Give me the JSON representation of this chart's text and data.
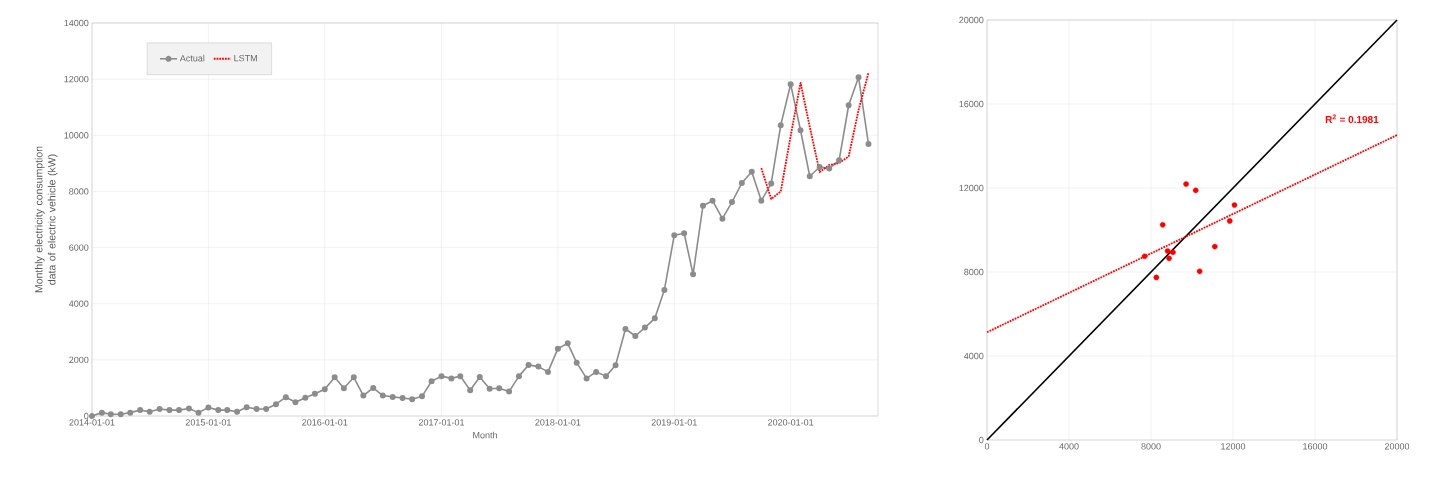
{
  "chart_data": [
    {
      "type": "line",
      "xlabel": "Month",
      "ylabel": "Monthly electricity consumption data of electric vehicle (kW)",
      "x": [
        "2014-01",
        "2014-02",
        "2014-03",
        "2014-04",
        "2014-05",
        "2014-06",
        "2014-07",
        "2014-08",
        "2014-09",
        "2014-10",
        "2014-11",
        "2014-12",
        "2015-01",
        "2015-02",
        "2015-03",
        "2015-04",
        "2015-05",
        "2015-06",
        "2015-07",
        "2015-08",
        "2015-09",
        "2015-10",
        "2015-11",
        "2015-12",
        "2016-01",
        "2016-02",
        "2016-03",
        "2016-04",
        "2016-05",
        "2016-06",
        "2016-07",
        "2016-08",
        "2016-09",
        "2016-10",
        "2016-11",
        "2016-12",
        "2017-01",
        "2017-02",
        "2017-03",
        "2017-04",
        "2017-05",
        "2017-06",
        "2017-07",
        "2017-08",
        "2017-09",
        "2017-10",
        "2017-11",
        "2017-12",
        "2018-01",
        "2018-02",
        "2018-03",
        "2018-04",
        "2018-05",
        "2018-06",
        "2018-07",
        "2018-08",
        "2018-09",
        "2018-10",
        "2018-11",
        "2018-12",
        "2019-01",
        "2019-02",
        "2019-03",
        "2019-04",
        "2019-05",
        "2019-06",
        "2019-07",
        "2019-08",
        "2019-09",
        "2019-10",
        "2019-11",
        "2019-12",
        "2020-01",
        "2020-02",
        "2020-03",
        "2020-04",
        "2020-05",
        "2020-06",
        "2020-07",
        "2020-08",
        "2020-09"
      ],
      "series": [
        {
          "name": "Actual",
          "color": "#8c8c8c",
          "marker": "circle",
          "line_style": "solid",
          "values": [
            0,
            120,
            60,
            60,
            120,
            210,
            150,
            250,
            210,
            210,
            270,
            120,
            300,
            210,
            210,
            150,
            310,
            250,
            250,
            420,
            670,
            490,
            650,
            790,
            950,
            1380,
            990,
            1380,
            730,
            1000,
            730,
            680,
            640,
            600,
            700,
            1240,
            1420,
            1340,
            1420,
            920,
            1390,
            970,
            990,
            870,
            1420,
            1820,
            1760,
            1570,
            2400,
            2590,
            1900,
            1340,
            1570,
            1420,
            1810,
            3100,
            2850,
            3150,
            3480,
            4490,
            6440,
            6510,
            5050,
            7490,
            7670,
            7030,
            7620,
            8300,
            8700,
            7670,
            8280,
            10360,
            11820,
            10180,
            8540,
            8870,
            8820,
            9110,
            11070,
            12070,
            9690
          ]
        },
        {
          "name": "LSTM",
          "color": "#ff0000",
          "marker": "none",
          "line_style": "dotted",
          "x": [
            "2019-10",
            "2019-11",
            "2019-12",
            "2020-01",
            "2020-02",
            "2020-03",
            "2020-04",
            "2020-05",
            "2020-06",
            "2020-07",
            "2020-08",
            "2020-09"
          ],
          "values": [
            8830,
            7730,
            8000,
            9970,
            11870,
            10300,
            8690,
            8940,
            9010,
            9250,
            10900,
            12220
          ]
        }
      ],
      "xlim": [
        "2014-01-01",
        "2020-10-01"
      ],
      "xticks": [
        "2014-01-01",
        "2015-01-01",
        "2016-01-01",
        "2017-01-01",
        "2018-01-01",
        "2019-01-01",
        "2020-01-01"
      ],
      "ylim": [
        0,
        14000
      ],
      "yticks": [
        0,
        2000,
        4000,
        6000,
        8000,
        10000,
        12000,
        14000
      ],
      "grid": true,
      "legend": "top left"
    },
    {
      "type": "scatter",
      "series": [
        {
          "type": "scatter",
          "color": "#ff0000",
          "marker": "circle",
          "x": [
            7690,
            8570,
            8260,
            8810,
            8880,
            9070,
            9710,
            10180,
            10370,
            11110,
            11840,
            12070
          ],
          "values": [
            8750,
            10250,
            7740,
            9000,
            8650,
            8940,
            12190,
            11890,
            8030,
            9210,
            10430,
            11190
          ]
        },
        {
          "type": "line",
          "color": "#000000",
          "marker": "none",
          "line_style": "solid",
          "x": [
            0,
            20000
          ],
          "values": [
            0,
            20000
          ]
        },
        {
          "type": "line",
          "color": "#ff0000",
          "marker": "none",
          "line_style": "dotted",
          "x": [
            0,
            20000
          ],
          "values": [
            5130,
            14520
          ]
        }
      ],
      "annotations": [
        "R$^{2}$ = 0.1981"
      ],
      "xlim": [
        0,
        20000
      ],
      "xticks": [
        0,
        4000,
        8000,
        12000,
        16000,
        20000
      ],
      "ylim": [
        0,
        20000
      ],
      "yticks": [
        0,
        4000,
        8000,
        12000,
        16000,
        20000
      ],
      "grid": true
    }
  ]
}
